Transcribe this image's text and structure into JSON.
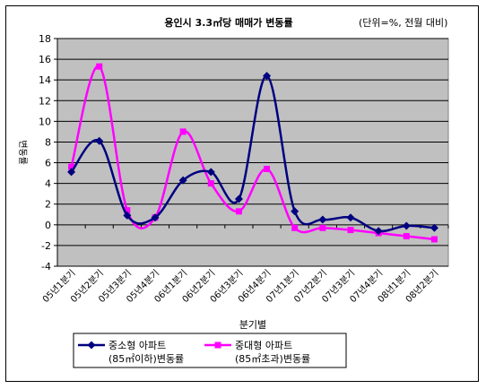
{
  "chart_data": {
    "type": "line",
    "title": "용인시 3.3㎡당 매매가 변동률",
    "unit_note": "(단위=%, 전월 대비)",
    "xlabel": "분기별",
    "ylabel": "변동률",
    "ylim": [
      -4,
      18
    ],
    "yticks": [
      "18",
      "16",
      "14",
      "12",
      "10",
      "8",
      "6",
      "4",
      "2",
      "0",
      "-2",
      "-4"
    ],
    "grid": true,
    "legend_position": "bottom-left",
    "categories": [
      "05년1분기",
      "05년2분기",
      "05년3분기",
      "05년4분기",
      "06년1분기",
      "06년2분기",
      "06년3분기",
      "06년4분기",
      "07년1분기",
      "07년2분기",
      "07년3분기",
      "07년4분기",
      "08년1분기",
      "08년2분기"
    ],
    "series": [
      {
        "name": "중소형 아파트 (85㎡이하)변동률",
        "legend_line1": "중소형 아파트",
        "legend_line2": "(85㎡이하)변동률",
        "color": "#000080",
        "marker": "diamond",
        "values": [
          5.1,
          8.1,
          0.9,
          0.7,
          4.3,
          5.1,
          2.5,
          14.4,
          1.3,
          0.5,
          0.7,
          -0.6,
          -0.1,
          -0.3
        ]
      },
      {
        "name": "중대형 아파트 (85㎡초과)변동률",
        "legend_line1": "중대형 아파트",
        "legend_line2": "(85㎡초과)변동률",
        "color": "#FF00FF",
        "marker": "square",
        "values": [
          5.6,
          15.3,
          1.4,
          0.7,
          9.0,
          4.0,
          1.3,
          5.4,
          -0.3,
          -0.3,
          -0.5,
          -0.8,
          -1.1,
          -1.4
        ]
      }
    ]
  },
  "colors": {
    "plot_bg": "#C0C0C0",
    "grid": "#000000"
  }
}
